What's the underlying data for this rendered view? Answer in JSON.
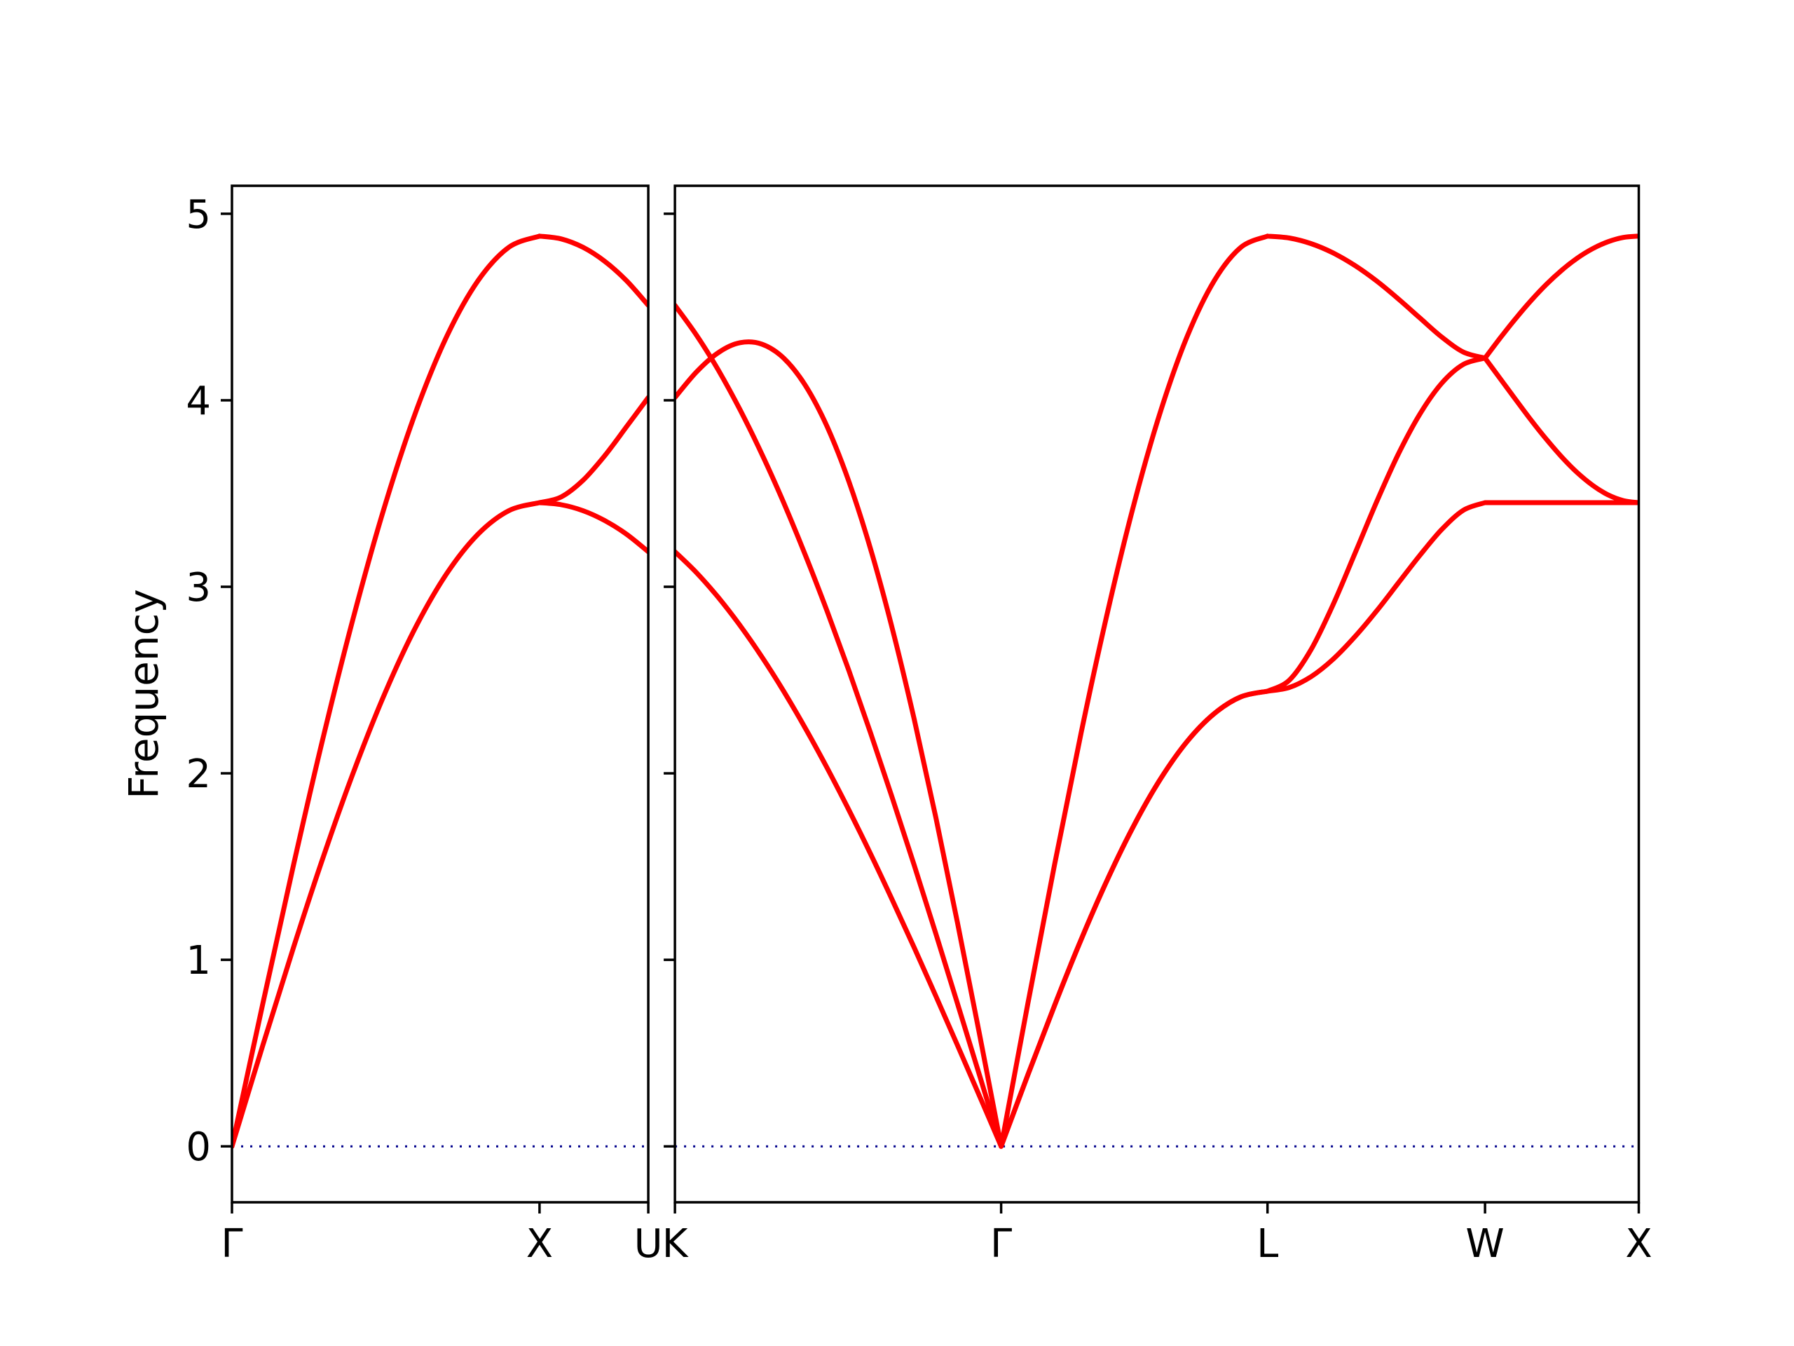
{
  "chart_data": {
    "type": "line",
    "title": "",
    "xlabel": "",
    "ylabel": "Frequency",
    "path": "Γ-X-U|K-Γ-L-W-X",
    "ylim": [
      -0.3,
      5.15
    ],
    "yticks": [
      0,
      1,
      2,
      3,
      4,
      5
    ],
    "line_color": "#ff0000",
    "axis_color": "#000000",
    "zero_line": {
      "y": 0,
      "color": "#00008b",
      "style": "dotted"
    },
    "grid": false,
    "legend": "none",
    "panels": [
      {
        "name": "gamma-x-u",
        "xlim": [
          0,
          1.3536
        ],
        "ticks": [
          {
            "label": "Γ",
            "x": 0
          },
          {
            "label": "X",
            "x": 1.0
          },
          {
            "label": "U",
            "x": 1.3536
          }
        ],
        "branches": [
          {
            "name": "longitudinal-acoustic",
            "segments": [
              {
                "x": [
                  0,
                  0.1,
                  0.2,
                  0.3,
                  0.4,
                  0.5,
                  0.6,
                  0.7,
                  0.8,
                  0.9,
                  1.0
                ],
                "y": [
                  0,
                  0.763,
                  1.508,
                  2.216,
                  2.868,
                  3.451,
                  3.948,
                  4.348,
                  4.641,
                  4.82,
                  4.88
                ]
              },
              {
                "x": [
                  1.0,
                  1.0707,
                  1.1414,
                  1.2121,
                  1.2828,
                  1.3536
                ],
                "y": [
                  4.88,
                  4.865,
                  4.82,
                  4.745,
                  4.641,
                  4.509
                ]
              }
            ]
          },
          {
            "name": "transverse-upper-split",
            "segments": [
              {
                "x": [
                  0,
                  0.1,
                  0.2,
                  0.3,
                  0.4,
                  0.5,
                  0.6,
                  0.7,
                  0.8,
                  0.9,
                  1.0
                ],
                "y": [
                  0,
                  0.54,
                  1.066,
                  1.567,
                  2.028,
                  2.44,
                  2.792,
                  3.075,
                  3.282,
                  3.408,
                  3.451
                ]
              },
              {
                "x": [
                  1.0,
                  1.0707,
                  1.1414,
                  1.2121,
                  1.2828,
                  1.3536
                ],
                "y": [
                  3.451,
                  3.482,
                  3.571,
                  3.703,
                  3.858,
                  4.015
                ]
              }
            ]
          },
          {
            "name": "transverse-lower-split",
            "segments": [
              {
                "x": [
                  1.0,
                  1.0707,
                  1.1414,
                  1.2121,
                  1.2828,
                  1.3536
                ],
                "y": [
                  3.451,
                  3.44,
                  3.408,
                  3.355,
                  3.282,
                  3.188
                ]
              }
            ]
          }
        ]
      },
      {
        "name": "k-gamma-l-w-x",
        "xlim": [
          0,
          3.1338
        ],
        "ticks": [
          {
            "label": "K",
            "x": 0
          },
          {
            "label": "Γ",
            "x": 1.0607
          },
          {
            "label": "L",
            "x": 1.9267
          },
          {
            "label": "W",
            "x": 2.6338
          },
          {
            "label": "X",
            "x": 3.1338
          }
        ],
        "branches": [
          {
            "name": "branch-1",
            "segments": [
              {
                "x": [
                  0,
                  0.0707,
                  0.1414,
                  0.2121,
                  0.2828,
                  0.3536,
                  0.4243,
                  0.495,
                  0.5657,
                  0.6364,
                  0.7071,
                  0.7778,
                  0.8485,
                  0.9192,
                  0.9899,
                  1.0607
                ],
                "y": [
                  4.509,
                  4.348,
                  4.161,
                  3.948,
                  3.711,
                  3.451,
                  3.169,
                  2.868,
                  2.55,
                  2.215,
                  1.867,
                  1.508,
                  1.139,
                  0.763,
                  0.383,
                  0
                ]
              },
              {
                "x": [
                  1.0607,
                  1.1473,
                  1.2339,
                  1.3205,
                  1.4071,
                  1.4937,
                  1.5803,
                  1.6669,
                  1.7535,
                  1.8401,
                  1.9267
                ],
                "y": [
                  0,
                  0.763,
                  1.508,
                  2.216,
                  2.868,
                  3.451,
                  3.948,
                  4.348,
                  4.641,
                  4.82,
                  4.88
                ]
              },
              {
                "x": [
                  1.9267,
                  1.9974,
                  2.0681,
                  2.1388,
                  2.2095,
                  2.2803,
                  2.351,
                  2.4217,
                  2.4924,
                  2.5631,
                  2.6338
                ],
                "y": [
                  4.88,
                  4.87,
                  4.84,
                  4.791,
                  4.724,
                  4.641,
                  4.545,
                  4.442,
                  4.34,
                  4.259,
                  4.226
                ]
              },
              {
                "x": [
                  2.6338,
                  2.6838,
                  2.7338,
                  2.7838,
                  2.8338,
                  2.8838,
                  2.9338,
                  2.9838,
                  3.0338,
                  3.0838,
                  3.1338
                ],
                "y": [
                  4.226,
                  4.115,
                  4.003,
                  3.893,
                  3.79,
                  3.695,
                  3.612,
                  3.544,
                  3.493,
                  3.462,
                  3.451
                ]
              }
            ]
          },
          {
            "name": "branch-2",
            "segments": [
              {
                "x": [
                  0,
                  0.0707,
                  0.1414,
                  0.2121,
                  0.2828,
                  0.3536,
                  0.4243,
                  0.495,
                  0.5657,
                  0.6364,
                  0.7071,
                  0.7778,
                  0.8485,
                  0.9192,
                  0.9899,
                  1.0607
                ],
                "y": [
                  4.015,
                  4.153,
                  4.256,
                  4.309,
                  4.301,
                  4.226,
                  4.079,
                  3.858,
                  3.564,
                  3.201,
                  2.774,
                  2.291,
                  1.762,
                  1.195,
                  0.604,
                  0
                ]
              },
              {
                "x": [
                  1.0607,
                  1.1473,
                  1.2339,
                  1.3205,
                  1.4071,
                  1.4937,
                  1.5803,
                  1.6669,
                  1.7535,
                  1.8401,
                  1.9267
                ],
                "y": [
                  0,
                  0.382,
                  0.754,
                  1.108,
                  1.434,
                  1.725,
                  1.974,
                  2.174,
                  2.32,
                  2.41,
                  2.44
                ]
              },
              {
                "x": [
                  1.9267,
                  1.9974,
                  2.0681,
                  2.1388,
                  2.2095,
                  2.2803,
                  2.351,
                  2.4217,
                  2.4924,
                  2.5631,
                  2.6338
                ],
                "y": [
                  2.44,
                  2.499,
                  2.663,
                  2.9,
                  3.173,
                  3.451,
                  3.708,
                  3.925,
                  4.09,
                  4.192,
                  4.226
                ]
              },
              {
                "x": [
                  2.6338,
                  2.6838,
                  2.7338,
                  2.7838,
                  2.8338,
                  2.8838,
                  2.9338,
                  2.9838,
                  3.0338,
                  3.0838,
                  3.1338
                ],
                "y": [
                  4.226,
                  4.335,
                  4.439,
                  4.535,
                  4.622,
                  4.698,
                  4.762,
                  4.813,
                  4.85,
                  4.873,
                  4.88
                ]
              }
            ]
          },
          {
            "name": "branch-3",
            "segments": [
              {
                "x": [
                  0,
                  0.0707,
                  0.1414,
                  0.2121,
                  0.2828,
                  0.3536,
                  0.4243,
                  0.495,
                  0.5657,
                  0.6364,
                  0.7071,
                  0.7778,
                  0.8485,
                  0.9192,
                  0.9899,
                  1.0607
                ],
                "y": [
                  3.188,
                  3.075,
                  2.942,
                  2.792,
                  2.624,
                  2.44,
                  2.241,
                  2.028,
                  1.803,
                  1.567,
                  1.32,
                  1.066,
                  0.805,
                  0.54,
                  0.271,
                  0
                ]
              },
              {
                "x": [
                  1.0607,
                  1.1473,
                  1.2339,
                  1.3205,
                  1.4071,
                  1.4937,
                  1.5803,
                  1.6669,
                  1.7535,
                  1.8401,
                  1.9267
                ],
                "y": [
                  0,
                  0.382,
                  0.754,
                  1.108,
                  1.434,
                  1.725,
                  1.974,
                  2.174,
                  2.32,
                  2.41,
                  2.44
                ]
              },
              {
                "x": [
                  1.9267,
                  1.9974,
                  2.0681,
                  2.1388,
                  2.2095,
                  2.2803,
                  2.351,
                  2.4217,
                  2.4924,
                  2.5631,
                  2.6338
                ],
                "y": [
                  2.44,
                  2.46,
                  2.518,
                  2.61,
                  2.73,
                  2.868,
                  3.018,
                  3.168,
                  3.306,
                  3.41,
                  3.451
                ]
              },
              {
                "x": [
                  2.6338,
                  2.6838,
                  2.7338,
                  2.7838,
                  2.8338,
                  2.8838,
                  2.9338,
                  2.9838,
                  3.0338,
                  3.0838,
                  3.1338
                ],
                "y": [
                  3.451,
                  3.451,
                  3.451,
                  3.451,
                  3.451,
                  3.451,
                  3.451,
                  3.451,
                  3.451,
                  3.451,
                  3.451
                ]
              }
            ]
          }
        ]
      }
    ]
  }
}
